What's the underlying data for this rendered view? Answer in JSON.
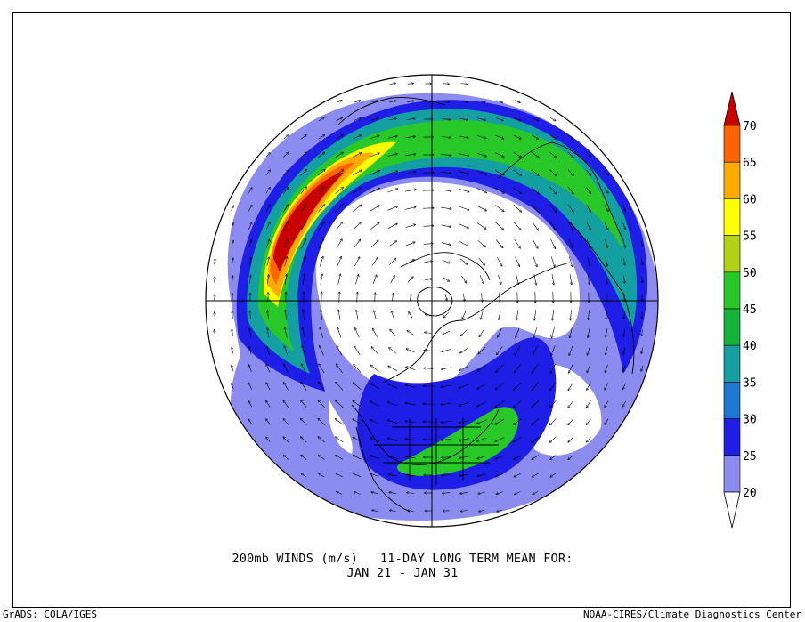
{
  "title": {
    "line1": "200mb WINDS (m/s)   11-DAY LONG TERM MEAN FOR:",
    "line2": "JAN 21 - JAN 31"
  },
  "credits": {
    "left": "GrADS: COLA/IGES",
    "right": "NOAA-CIRES/Climate Diagnostics Center"
  },
  "map": {
    "projection": "north polar stereographic",
    "field": "200mb wind speed shaded, wind vectors",
    "overlays": [
      "coastlines",
      "political boundaries",
      "US state boundaries",
      "lat-lon crosshair"
    ]
  },
  "colorbar": {
    "units": "m/s",
    "labels": [
      "20",
      "25",
      "30",
      "35",
      "40",
      "45",
      "50",
      "55",
      "60",
      "65",
      "70"
    ],
    "colors": [
      "#ffffff",
      "#8c8cf0",
      "#1e1ee6",
      "#1e78d2",
      "#14a0a0",
      "#14b43c",
      "#28c828",
      "#b4d214",
      "#ffff00",
      "#ffaa00",
      "#ff6400",
      "#c80000"
    ]
  }
}
